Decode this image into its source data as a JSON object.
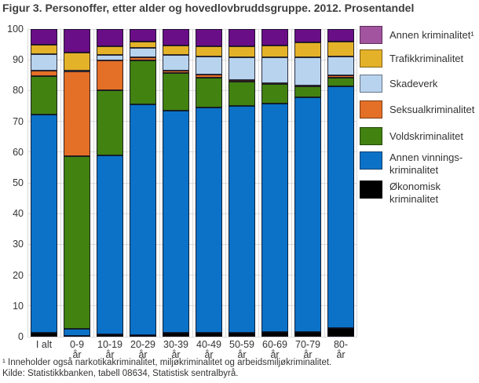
{
  "title": "Figur 3. Personoffer, etter alder og hovedlovbruddsgruppe. 2012. Prosentandel",
  "footnotes": {
    "note1": "¹ Inneholder også narkotikakriminalitet, miljøkriminalitet og arbeidsmiljøkriminalitet.",
    "source": "Kilde: Statistikkbanken, tabell 08634, Statistisk sentralbyrå."
  },
  "colors": {
    "okonomisk": "#000000",
    "annen_vinnings": "#0b72c8",
    "volds": "#428211",
    "seksual": "#e46f27",
    "skadeverk": "#b8d3ee",
    "trafikk": "#e4b229",
    "annen_bar": "#6a0e87",
    "annen_legend": "#a2549f",
    "grid": "#d9d9d9"
  },
  "chart_data": {
    "type": "bar",
    "stacked": true,
    "title": "Figur 3. Personoffer, etter alder og hovedlovbruddsgruppe. 2012. Prosentandel",
    "xlabel": "",
    "ylabel": "",
    "ylim": [
      0,
      100
    ],
    "yticks": [
      0,
      10,
      20,
      30,
      40,
      50,
      60,
      70,
      80,
      90,
      100
    ],
    "grid": true,
    "legend_position": "right",
    "categories": [
      "I alt",
      "0-9 år",
      "10-19 år",
      "20-29 år",
      "30-39 år",
      "40-49 år",
      "50-59 år",
      "60-69 år",
      "70-79 år",
      "80- år"
    ],
    "category_label_lines": [
      [
        "I alt"
      ],
      [
        "0-9",
        "år"
      ],
      [
        "10-19",
        "år"
      ],
      [
        "20-29",
        "år"
      ],
      [
        "30-39",
        "år"
      ],
      [
        "40-49",
        "år"
      ],
      [
        "50-59",
        "år"
      ],
      [
        "60-69",
        "år"
      ],
      [
        "70-79",
        "år"
      ],
      [
        "80-",
        "år"
      ]
    ],
    "series": [
      {
        "name": "Økonomisk kriminalitet",
        "color": "#000000",
        "values": [
          1.2,
          0.3,
          0.7,
          0.6,
          1.2,
          1.2,
          1.3,
          1.5,
          1.5,
          2.7
        ]
      },
      {
        "name": "Annen vinnings-kriminalitet",
        "color": "#0b72c8",
        "values": [
          70.9,
          2.2,
          58.3,
          74.9,
          72.2,
          73.3,
          73.6,
          74.2,
          76.4,
          78.8
        ]
      },
      {
        "name": "Voldskriminalitet",
        "color": "#428211",
        "values": [
          12.5,
          56.3,
          21.0,
          14.2,
          12.2,
          9.8,
          8.0,
          6.5,
          3.6,
          2.7
        ]
      },
      {
        "name": "Seksualkriminalitet",
        "color": "#e46f27",
        "values": [
          2.0,
          27.4,
          9.7,
          1.1,
          0.8,
          0.8,
          0.4,
          0.3,
          0.2,
          0.7
        ]
      },
      {
        "name": "Skadeverk",
        "color": "#b8d3ee",
        "values": [
          5.3,
          0.4,
          1.8,
          3.0,
          5.1,
          6.1,
          7.5,
          8.3,
          9.0,
          6.1
        ]
      },
      {
        "name": "Trafikkriminalitet",
        "color": "#e4b229",
        "values": [
          3.0,
          5.7,
          2.9,
          2.1,
          3.1,
          3.2,
          3.7,
          3.8,
          5.0,
          5.0
        ]
      },
      {
        "name": "Annen kriminalitet¹",
        "color": "#6a0e87",
        "values": [
          5.1,
          7.7,
          5.6,
          4.1,
          5.4,
          5.6,
          5.5,
          5.4,
          4.3,
          4.0
        ]
      }
    ],
    "legend": [
      {
        "lines": [
          "Annen kriminalitet¹"
        ],
        "color": "#a2549f"
      },
      {
        "lines": [
          "Trafikkriminalitet"
        ],
        "color": "#e4b229"
      },
      {
        "lines": [
          "Skadeverk"
        ],
        "color": "#b8d3ee"
      },
      {
        "lines": [
          "Seksualkriminalitet"
        ],
        "color": "#e46f27"
      },
      {
        "lines": [
          "Voldskriminalitet"
        ],
        "color": "#428211"
      },
      {
        "lines": [
          "Annen vinnings-",
          "kriminalitet"
        ],
        "color": "#0b72c8"
      },
      {
        "lines": [
          "Økonomisk",
          "kriminalitet"
        ],
        "color": "#000000"
      }
    ]
  }
}
